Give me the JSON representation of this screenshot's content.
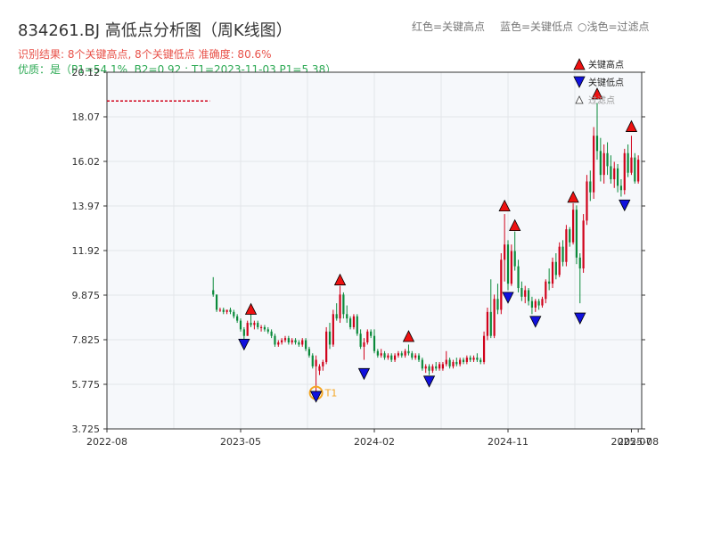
{
  "header": {
    "title": "834261.BJ 高低点分析图（周K线图）",
    "legend_hint_red": "红色=关键高点",
    "legend_hint_blue": "蓝色=关键低点",
    "legend_hint_filtered": "○浅色=过滤点",
    "result_line": "识别结果: 8个关键高点, 8个关键低点  准确度: 80.6%",
    "quality_line": "优质：是（P1=54.1%, B2=0.92 ; T1=2023-11-03 P1=5.38）"
  },
  "colors": {
    "up": "#d0021b",
    "down": "#0a8a3a",
    "high_marker": "#ee1111",
    "low_marker": "#1111dd",
    "t1_ring": "#f5a623",
    "ref_line": "#d0021b",
    "plot_bg": "#f6f8fb",
    "grid": "#e3e6ea"
  },
  "chart_data": {
    "type": "candlestick",
    "x_ticks": [
      "2022-08",
      "2023-05",
      "2024-02",
      "2024-11",
      "2025-07",
      "2025-08"
    ],
    "x_tick_values": [
      0,
      39,
      78,
      117,
      153,
      155
    ],
    "xlim": [
      0,
      156
    ],
    "y_ticks": [
      "3.725",
      "5.775",
      "7.825",
      "9.875",
      "11.92",
      "13.97",
      "16.02",
      "18.07",
      "20.12"
    ],
    "ylim": [
      3.725,
      20.12
    ],
    "reference_line": {
      "y": 18.8,
      "x_from": 0,
      "x_to": 30
    },
    "legend": {
      "high": "关键高点",
      "low": "关键低点",
      "filtered": "过滤点",
      "position": "top-right"
    },
    "t1": {
      "label": "T1",
      "x": 61,
      "y": 5.38
    },
    "key_highs": [
      {
        "x": 42,
        "y": 8.95
      },
      {
        "x": 68,
        "y": 10.3
      },
      {
        "x": 88,
        "y": 7.7
      },
      {
        "x": 116,
        "y": 13.7
      },
      {
        "x": 119,
        "y": 12.8
      },
      {
        "x": 136,
        "y": 14.1
      },
      {
        "x": 143,
        "y": 18.85
      },
      {
        "x": 153,
        "y": 17.35
      }
    ],
    "key_lows": [
      {
        "x": 40,
        "y": 7.85
      },
      {
        "x": 61,
        "y": 5.45
      },
      {
        "x": 75,
        "y": 6.5
      },
      {
        "x": 94,
        "y": 6.15
      },
      {
        "x": 117,
        "y": 10.0
      },
      {
        "x": 125,
        "y": 8.9
      },
      {
        "x": 138,
        "y": 9.05
      },
      {
        "x": 151,
        "y": 14.25
      }
    ],
    "ohlc": [
      [
        31,
        10.1,
        10.7,
        9.8,
        9.9
      ],
      [
        32,
        9.9,
        9.9,
        9.1,
        9.2
      ],
      [
        33,
        9.2,
        9.3,
        9.1,
        9.2
      ],
      [
        34,
        9.2,
        9.3,
        9.0,
        9.1
      ],
      [
        35,
        9.1,
        9.2,
        9.0,
        9.2
      ],
      [
        36,
        9.2,
        9.3,
        9.0,
        9.1
      ],
      [
        37,
        9.1,
        9.2,
        8.8,
        8.9
      ],
      [
        38,
        8.9,
        9.0,
        8.6,
        8.7
      ],
      [
        39,
        8.7,
        8.8,
        8.2,
        8.3
      ],
      [
        40,
        8.3,
        8.4,
        7.8,
        8.0
      ],
      [
        41,
        8.0,
        8.7,
        8.0,
        8.6
      ],
      [
        42,
        8.6,
        9.0,
        8.4,
        8.5
      ],
      [
        43,
        8.5,
        8.7,
        8.3,
        8.6
      ],
      [
        44,
        8.6,
        8.7,
        8.3,
        8.4
      ],
      [
        45,
        8.4,
        8.5,
        8.2,
        8.4
      ],
      [
        46,
        8.4,
        8.5,
        8.2,
        8.3
      ],
      [
        47,
        8.3,
        8.4,
        8.1,
        8.2
      ],
      [
        48,
        8.2,
        8.3,
        7.9,
        8.0
      ],
      [
        49,
        8.0,
        8.1,
        7.5,
        7.6
      ],
      [
        50,
        7.6,
        7.8,
        7.5,
        7.7
      ],
      [
        51,
        7.7,
        7.9,
        7.6,
        7.8
      ],
      [
        52,
        7.8,
        8.0,
        7.7,
        7.9
      ],
      [
        53,
        7.9,
        8.0,
        7.6,
        7.7
      ],
      [
        54,
        7.7,
        7.9,
        7.6,
        7.8
      ],
      [
        55,
        7.8,
        7.9,
        7.6,
        7.7
      ],
      [
        56,
        7.7,
        7.8,
        7.5,
        7.6
      ],
      [
        57,
        7.6,
        7.9,
        7.5,
        7.8
      ],
      [
        58,
        7.8,
        7.9,
        7.3,
        7.4
      ],
      [
        59,
        7.4,
        7.5,
        7.0,
        7.1
      ],
      [
        60,
        7.1,
        7.2,
        6.5,
        6.6
      ],
      [
        61,
        6.6,
        7.1,
        5.4,
        6.9
      ],
      [
        62,
        6.4,
        6.7,
        6.2,
        6.6
      ],
      [
        63,
        6.6,
        6.9,
        6.4,
        6.8
      ],
      [
        64,
        6.8,
        8.4,
        6.7,
        8.2
      ],
      [
        65,
        8.2,
        8.6,
        7.4,
        7.6
      ],
      [
        66,
        7.6,
        9.2,
        7.5,
        9.0
      ],
      [
        67,
        9.0,
        9.5,
        8.7,
        8.8
      ],
      [
        68,
        8.8,
        10.3,
        8.6,
        9.9
      ],
      [
        69,
        9.9,
        10.0,
        8.8,
        9.0
      ],
      [
        70,
        9.0,
        9.4,
        8.6,
        8.8
      ],
      [
        71,
        8.8,
        8.9,
        8.3,
        8.4
      ],
      [
        72,
        8.4,
        9.0,
        8.3,
        8.9
      ],
      [
        73,
        8.9,
        9.0,
        8.0,
        8.1
      ],
      [
        74,
        8.1,
        8.3,
        7.4,
        7.5
      ],
      [
        75,
        7.5,
        7.9,
        6.9,
        7.7
      ],
      [
        76,
        7.7,
        8.3,
        7.6,
        8.2
      ],
      [
        77,
        8.2,
        8.3,
        7.9,
        8.0
      ],
      [
        78,
        8.0,
        8.3,
        7.2,
        7.3
      ],
      [
        79,
        7.3,
        7.4,
        7.0,
        7.1
      ],
      [
        80,
        7.1,
        7.4,
        7.0,
        7.2
      ],
      [
        81,
        7.2,
        7.3,
        6.9,
        7.0
      ],
      [
        82,
        7.0,
        7.2,
        6.9,
        7.1
      ],
      [
        83,
        7.1,
        7.2,
        6.8,
        6.9
      ],
      [
        84,
        6.9,
        7.2,
        6.8,
        7.1
      ],
      [
        85,
        7.1,
        7.3,
        7.0,
        7.2
      ],
      [
        86,
        7.2,
        7.3,
        7.0,
        7.1
      ],
      [
        87,
        7.1,
        7.4,
        7.0,
        7.3
      ],
      [
        88,
        7.3,
        7.6,
        7.1,
        7.2
      ],
      [
        89,
        7.2,
        7.3,
        6.9,
        7.0
      ],
      [
        90,
        7.0,
        7.2,
        6.9,
        7.1
      ],
      [
        91,
        7.1,
        7.2,
        6.8,
        6.9
      ],
      [
        92,
        6.9,
        7.0,
        6.4,
        6.5
      ],
      [
        93,
        6.5,
        6.7,
        6.3,
        6.6
      ],
      [
        94,
        6.6,
        6.7,
        6.2,
        6.4
      ],
      [
        95,
        6.4,
        6.7,
        6.3,
        6.6
      ],
      [
        96,
        6.6,
        6.8,
        6.4,
        6.5
      ],
      [
        97,
        6.5,
        6.8,
        6.4,
        6.7
      ],
      [
        98,
        6.5,
        6.8,
        6.4,
        6.7
      ],
      [
        99,
        6.7,
        7.3,
        6.6,
        6.9
      ],
      [
        100,
        6.9,
        7.0,
        6.5,
        6.6
      ],
      [
        101,
        6.6,
        6.9,
        6.5,
        6.8
      ],
      [
        102,
        6.8,
        7.0,
        6.6,
        6.7
      ],
      [
        103,
        6.7,
        7.0,
        6.6,
        6.9
      ],
      [
        104,
        6.9,
        7.0,
        6.7,
        6.8
      ],
      [
        105,
        6.8,
        7.1,
        6.7,
        7.0
      ],
      [
        106,
        7.0,
        7.1,
        6.8,
        6.9
      ],
      [
        107,
        6.9,
        7.1,
        6.8,
        7.0
      ],
      [
        108,
        7.0,
        7.2,
        6.8,
        6.9
      ],
      [
        109,
        6.9,
        7.0,
        6.7,
        6.8
      ],
      [
        110,
        6.8,
        8.2,
        6.7,
        8.0
      ],
      [
        111,
        8.0,
        9.3,
        7.8,
        9.1
      ],
      [
        112,
        9.1,
        10.6,
        7.9,
        8.0
      ],
      [
        113,
        8.0,
        9.9,
        7.9,
        9.7
      ],
      [
        114,
        9.7,
        10.4,
        9.0,
        9.2
      ],
      [
        115,
        9.2,
        11.8,
        9.0,
        11.5
      ],
      [
        116,
        11.5,
        13.6,
        10.5,
        12.2
      ],
      [
        117,
        12.2,
        12.4,
        10.1,
        10.4
      ],
      [
        118,
        10.4,
        12.2,
        10.3,
        11.9
      ],
      [
        119,
        11.9,
        12.8,
        11.0,
        11.2
      ],
      [
        120,
        11.2,
        11.5,
        10.0,
        10.2
      ],
      [
        121,
        10.2,
        10.5,
        9.6,
        9.8
      ],
      [
        122,
        9.8,
        10.3,
        9.5,
        10.1
      ],
      [
        123,
        10.1,
        10.2,
        9.4,
        9.6
      ],
      [
        124,
        9.6,
        9.8,
        9.0,
        9.3
      ],
      [
        125,
        9.3,
        9.7,
        9.1,
        9.6
      ],
      [
        126,
        9.6,
        9.7,
        9.2,
        9.4
      ],
      [
        127,
        9.4,
        9.8,
        9.3,
        9.7
      ],
      [
        128,
        9.7,
        10.6,
        9.5,
        10.5
      ],
      [
        129,
        10.5,
        11.1,
        10.1,
        10.4
      ],
      [
        130,
        10.4,
        11.6,
        10.2,
        11.4
      ],
      [
        131,
        11.4,
        11.8,
        10.6,
        10.8
      ],
      [
        132,
        10.8,
        12.3,
        10.7,
        12.1
      ],
      [
        133,
        12.1,
        12.4,
        11.2,
        11.4
      ],
      [
        134,
        11.4,
        13.1,
        11.2,
        12.9
      ],
      [
        135,
        12.9,
        13.0,
        12.1,
        12.3
      ],
      [
        136,
        12.3,
        14.1,
        12.2,
        13.8
      ],
      [
        137,
        13.8,
        14.0,
        11.3,
        11.6
      ],
      [
        138,
        11.6,
        11.8,
        9.5,
        11.1
      ],
      [
        139,
        11.1,
        13.6,
        10.9,
        13.3
      ],
      [
        140,
        13.3,
        15.4,
        13.1,
        15.1
      ],
      [
        141,
        15.1,
        15.6,
        14.2,
        14.6
      ],
      [
        142,
        14.6,
        17.6,
        14.3,
        17.2
      ],
      [
        143,
        17.2,
        18.7,
        16.1,
        16.5
      ],
      [
        144,
        16.5,
        17.1,
        15.1,
        15.4
      ],
      [
        145,
        15.4,
        16.8,
        15.0,
        16.4
      ],
      [
        146,
        16.4,
        16.9,
        15.4,
        15.8
      ],
      [
        147,
        15.8,
        16.3,
        15.0,
        15.2
      ],
      [
        148,
        15.2,
        16.0,
        14.8,
        15.7
      ],
      [
        149,
        15.7,
        15.9,
        14.6,
        14.9
      ],
      [
        150,
        14.9,
        15.2,
        14.4,
        14.7
      ],
      [
        151,
        14.7,
        16.6,
        14.5,
        16.4
      ],
      [
        152,
        16.4,
        16.8,
        15.3,
        15.5
      ],
      [
        153,
        15.5,
        17.2,
        15.4,
        16.2
      ],
      [
        154,
        16.2,
        16.4,
        15.0,
        15.1
      ],
      [
        155,
        15.1,
        16.3,
        15.0,
        16.1
      ]
    ]
  }
}
